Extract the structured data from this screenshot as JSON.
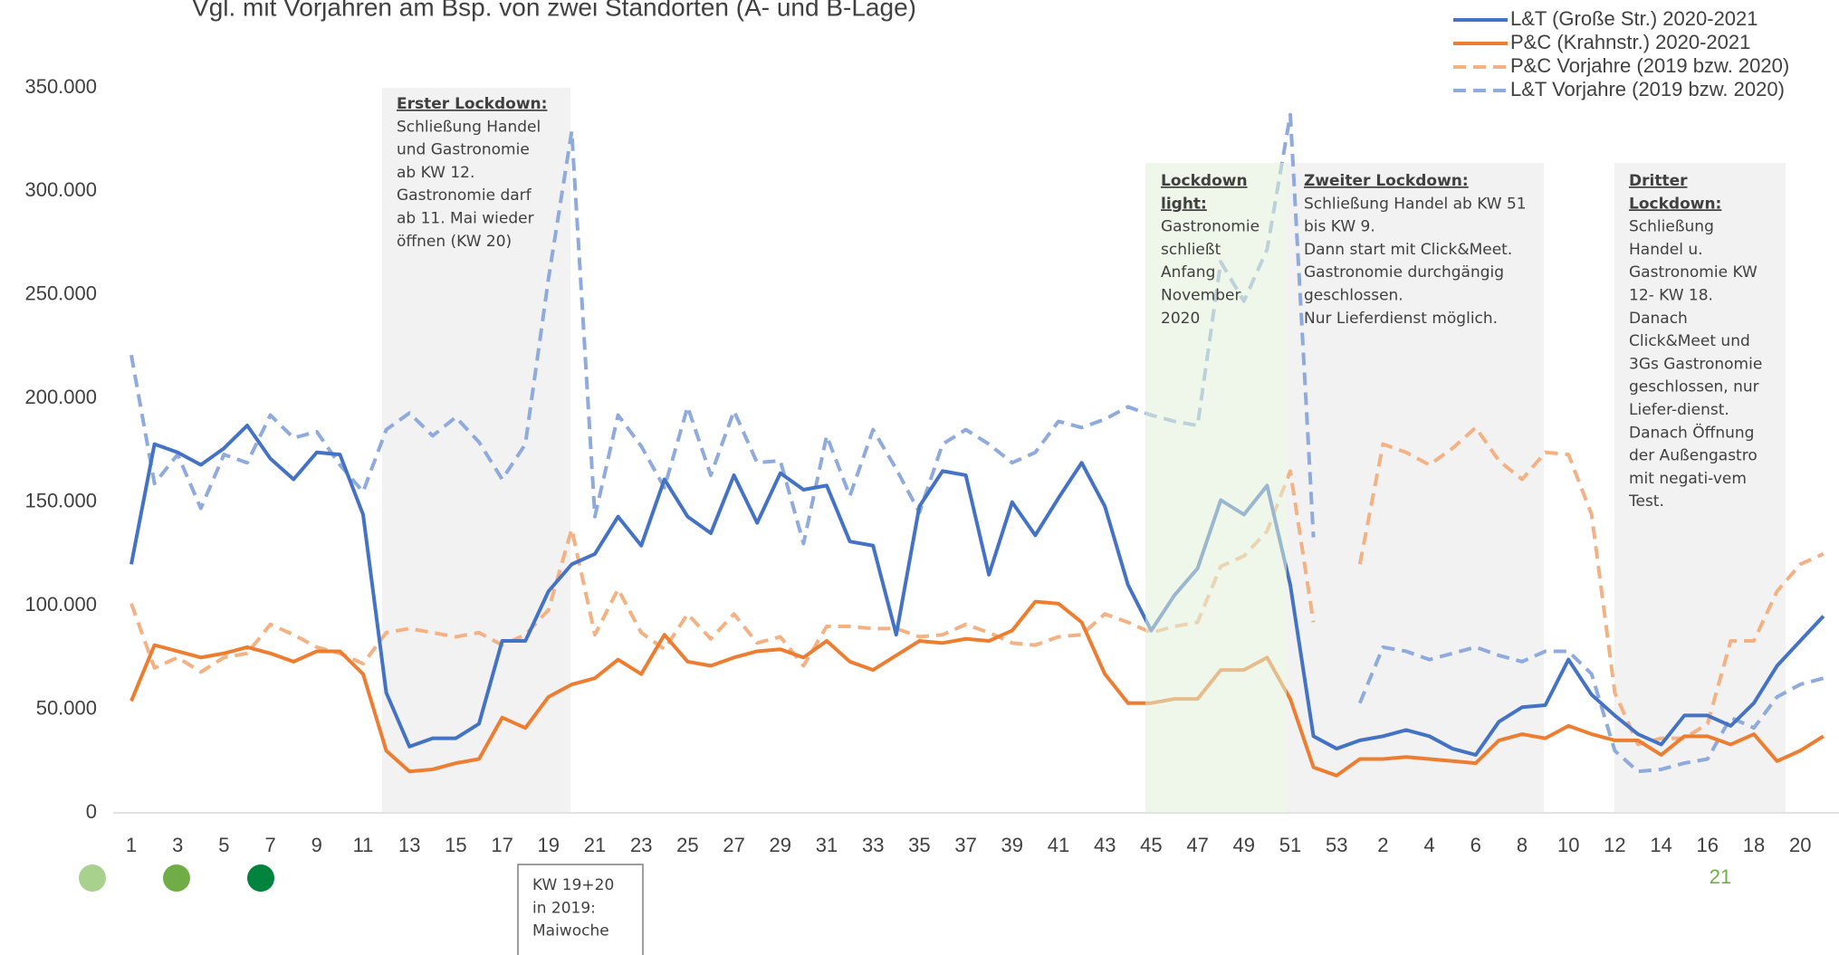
{
  "chart_data": {
    "type": "line",
    "title": "Vgl. mit Vorjahren am Bsp. von zwei Standorten (A- und B-Lage)",
    "categories": [
      "1",
      null,
      "3",
      null,
      "5",
      null,
      "7",
      null,
      "9",
      null,
      "11",
      null,
      "13",
      null,
      "15",
      null,
      "17",
      null,
      "19",
      null,
      "21",
      null,
      "23",
      null,
      "25",
      null,
      "27",
      null,
      "29",
      null,
      "31",
      null,
      "33",
      null,
      "35",
      null,
      "37",
      null,
      "39",
      null,
      "41",
      null,
      "43",
      null,
      "45",
      null,
      "47",
      null,
      "49",
      null,
      "51",
      null,
      "53",
      null,
      "2",
      null,
      "4",
      null,
      "6",
      null,
      "8",
      null,
      "10",
      null,
      "12",
      null,
      "14",
      null,
      "16",
      null,
      "18",
      null,
      "20",
      null
    ],
    "ylim": [
      0,
      350000
    ],
    "yticks": [
      0,
      {
        "value": 50000,
        "label": "50.000"
      },
      {
        "value": 100000,
        "label": "100.000"
      },
      {
        "value": 150000,
        "label": "150.000"
      },
      {
        "value": 200000,
        "label": "200.000"
      },
      {
        "value": 250000,
        "label": "250.000"
      },
      {
        "value": 300000,
        "label": "300.000"
      },
      {
        "value": 350000,
        "label": "350.000"
      }
    ],
    "grid": false,
    "legend": "top-right",
    "series": [
      {
        "name": "L&T (Große Str.) 2020-2021",
        "color": "#4472c4",
        "style": "solid",
        "values": [
          120000,
          178000,
          174000,
          168000,
          176000,
          187000,
          171000,
          161000,
          174000,
          173000,
          144000,
          58000,
          32000,
          36000,
          36000,
          43000,
          83000,
          83000,
          107000,
          120000,
          125000,
          143000,
          129000,
          161000,
          143000,
          135000,
          163000,
          140000,
          164000,
          156000,
          158000,
          131000,
          129000,
          86000,
          148000,
          165000,
          163000,
          115000,
          150000,
          134000,
          152000,
          169000,
          148000,
          110000,
          88000,
          105000,
          118000,
          151000,
          144000,
          158000,
          110000,
          37000,
          31000,
          35000,
          37000,
          40000,
          37000,
          31000,
          28000,
          44000,
          51000,
          52000,
          74000,
          57000,
          47000,
          38000,
          33000,
          47000,
          47000,
          42000,
          53000,
          71000,
          83000,
          95000
        ]
      },
      {
        "name": "P&C (Krahnstr.) 2020-2021",
        "color": "#ed7d31",
        "style": "solid",
        "values": [
          54000,
          81000,
          78000,
          75000,
          77000,
          80000,
          77000,
          73000,
          78000,
          78000,
          67000,
          30000,
          20000,
          21000,
          24000,
          26000,
          46000,
          41000,
          56000,
          62000,
          65000,
          74000,
          67000,
          86000,
          73000,
          71000,
          75000,
          78000,
          79000,
          75000,
          83000,
          73000,
          69000,
          76000,
          83000,
          82000,
          84000,
          83000,
          88000,
          102000,
          101000,
          92000,
          67000,
          53000,
          53000,
          55000,
          55000,
          69000,
          69000,
          75000,
          55000,
          22000,
          18000,
          26000,
          26000,
          27000,
          26000,
          25000,
          24000,
          35000,
          38000,
          36000,
          42000,
          38000,
          35000,
          35000,
          28000,
          37000,
          37000,
          33000,
          38000,
          25000,
          30000,
          37000
        ]
      },
      {
        "name": "P&C Vorjahre (2019 bzw. 2020)",
        "color": "#f4b183",
        "style": "dashed",
        "values": [
          101000,
          70000,
          75000,
          68000,
          75000,
          77000,
          91000,
          86000,
          80000,
          77000,
          72000,
          87000,
          89000,
          87000,
          85000,
          87000,
          81000,
          86000,
          98000,
          137000,
          86000,
          108000,
          87000,
          79000,
          96000,
          84000,
          96000,
          82000,
          85000,
          71000,
          90000,
          90000,
          89000,
          89000,
          85000,
          86000,
          91000,
          87000,
          82000,
          81000,
          85000,
          86000,
          96000,
          92000,
          87000,
          90000,
          92000,
          119000,
          124000,
          136000,
          165000,
          92000,
          null,
          120000,
          178000,
          174000,
          168000,
          176000,
          186000,
          170000,
          161000,
          174000,
          173000,
          144000,
          58000,
          33000,
          36000,
          36000,
          43000,
          83000,
          83000,
          107000,
          120000,
          125000
        ]
      },
      {
        "name": "L&T Vorjahre (2019 bzw. 2020)",
        "color": "#8faadc",
        "style": "dashed",
        "values": [
          221000,
          159000,
          173000,
          147000,
          173000,
          169000,
          192000,
          181000,
          184000,
          168000,
          155000,
          185000,
          193000,
          182000,
          191000,
          179000,
          161000,
          178000,
          258000,
          329000,
          143000,
          192000,
          177000,
          157000,
          196000,
          163000,
          194000,
          169000,
          170000,
          130000,
          182000,
          153000,
          185000,
          166000,
          145000,
          178000,
          185000,
          178000,
          169000,
          174000,
          189000,
          186000,
          190000,
          196000,
          192000,
          189000,
          187000,
          266000,
          247000,
          272000,
          337000,
          133000,
          null,
          53000,
          80000,
          78000,
          74000,
          77000,
          80000,
          76000,
          73000,
          78000,
          78000,
          67000,
          30000,
          20000,
          21000,
          24000,
          26000,
          46000,
          41000,
          56000,
          62000,
          65000
        ]
      }
    ],
    "annotations": [
      {
        "title": [
          "Erster Lockdown:"
        ],
        "lines": [
          "Schließung Handel",
          "und Gastronomie",
          "ab KW 12.",
          "Gastronomie darf",
          "ab 11. Mai wieder",
          "öffnen (KW 20)"
        ]
      },
      {
        "title": [
          "Lockdown",
          "light:"
        ],
        "lines": [
          "Gastronomie",
          "schließt",
          "Anfang",
          "November",
          "2020"
        ]
      },
      {
        "title": [
          "Zweiter Lockdown:"
        ],
        "lines": [
          "Schließung Handel ab KW 51",
          "bis KW 9.",
          "Dann start mit Click&Meet.",
          "Gastronomie durchgängig",
          "geschlossen.",
          "Nur Lieferdienst möglich."
        ]
      },
      {
        "title": [
          "Dritter",
          "Lockdown:"
        ],
        "lines": [
          "Schließung",
          "Handel u.",
          "Gastronomie KW",
          "12- KW 18.",
          "Danach",
          "Click&Meet und",
          "3Gs Gastronomie",
          "geschlossen, nur",
          "Liefer-dienst.",
          "Danach Öffnung",
          "der Außengastro",
          "mit negati-vem",
          "Test."
        ]
      },
      {
        "title": [],
        "lines": [
          "KW 19+20",
          "in 2019:",
          "Maiwoche"
        ]
      }
    ],
    "page_number": "21"
  }
}
